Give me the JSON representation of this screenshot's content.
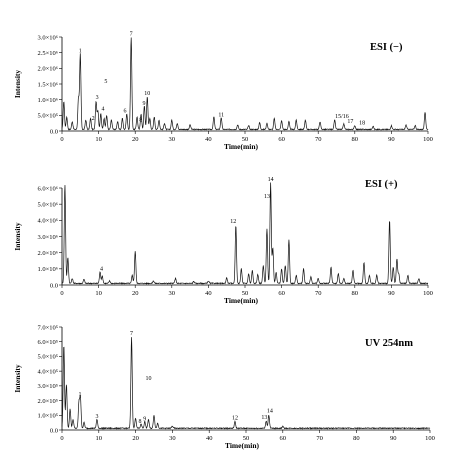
{
  "chart_data": [
    {
      "type": "line",
      "label": "ESI (−)",
      "xlabel": "Time(min)",
      "ylabel": "Intensity",
      "xlim": [
        0,
        100
      ],
      "ylim": [
        0,
        3.0
      ],
      "xticks": [
        0,
        10,
        20,
        30,
        40,
        50,
        60,
        70,
        80,
        90,
        100
      ],
      "yticks": [
        {
          "v": 0.0,
          "t": "0.0"
        },
        {
          "v": 0.5,
          "t": "5.0×10⁵"
        },
        {
          "v": 1.0,
          "t": "1.0×10⁶"
        },
        {
          "v": 1.5,
          "t": "1.5×10⁶"
        },
        {
          "v": 2.0,
          "t": "2.0×10⁶"
        },
        {
          "v": 2.5,
          "t": "2.5×10⁶"
        },
        {
          "v": 3.0,
          "t": "3.0×10⁶"
        }
      ],
      "peaks": [
        [
          0.5,
          0.9
        ],
        [
          1.3,
          0.4
        ],
        [
          2.8,
          0.25
        ],
        [
          4.5,
          1.0
        ],
        [
          5.0,
          2.4
        ],
        [
          6.5,
          0.3
        ],
        [
          7.8,
          0.35
        ],
        [
          9.3,
          0.9
        ],
        [
          9.8,
          0.6
        ],
        [
          10.6,
          0.5
        ],
        [
          11.5,
          0.35
        ],
        [
          12.2,
          0.45
        ],
        [
          13.5,
          0.3
        ],
        [
          15.2,
          0.25
        ],
        [
          16.5,
          0.35
        ],
        [
          17.7,
          0.5
        ],
        [
          18.9,
          2.95
        ],
        [
          20.5,
          0.4
        ],
        [
          21.6,
          0.5
        ],
        [
          22.5,
          0.75
        ],
        [
          23.3,
          1.05
        ],
        [
          24.0,
          0.35
        ],
        [
          25.2,
          0.4
        ],
        [
          26.5,
          0.3
        ],
        [
          28.0,
          0.2
        ],
        [
          30.0,
          0.3
        ],
        [
          31.5,
          0.2
        ],
        [
          35.0,
          0.15
        ],
        [
          41.5,
          0.4
        ],
        [
          43.5,
          0.38
        ],
        [
          48.0,
          0.15
        ],
        [
          51.0,
          0.12
        ],
        [
          54.0,
          0.22
        ],
        [
          56.0,
          0.2
        ],
        [
          58.0,
          0.35
        ],
        [
          60.0,
          0.28
        ],
        [
          62.0,
          0.25
        ],
        [
          64.0,
          0.3
        ],
        [
          66.5,
          0.3
        ],
        [
          70.5,
          0.25
        ],
        [
          74.5,
          0.32
        ],
        [
          77.0,
          0.18
        ],
        [
          80.0,
          0.12
        ],
        [
          85.0,
          0.1
        ],
        [
          90.0,
          0.12
        ],
        [
          94.0,
          0.14
        ],
        [
          96.5,
          0.13
        ],
        [
          99.2,
          0.55
        ]
      ],
      "annotations": [
        {
          "x": 5.0,
          "y": 2.45,
          "text": "1"
        },
        {
          "x": 8.5,
          "y": 0.3,
          "text": "2"
        },
        {
          "x": 9.6,
          "y": 0.98,
          "text": "3"
        },
        {
          "x": 11.2,
          "y": 0.6,
          "text": "4"
        },
        {
          "x": 12.0,
          "y": 1.48,
          "text": "5"
        },
        {
          "x": 17.2,
          "y": 0.55,
          "text": "6"
        },
        {
          "x": 18.9,
          "y": 3.0,
          "text": "7"
        },
        {
          "x": 21.5,
          "y": 0.25,
          "text": "8"
        },
        {
          "x": 22.4,
          "y": 0.78,
          "text": "9"
        },
        {
          "x": 23.3,
          "y": 1.1,
          "text": "10"
        },
        {
          "x": 43.5,
          "y": 0.42,
          "text": "11"
        },
        {
          "x": 76.5,
          "y": 0.36,
          "text": "15/16"
        },
        {
          "x": 78.8,
          "y": 0.2,
          "text": "17"
        },
        {
          "x": 82.0,
          "y": 0.16,
          "text": "18"
        }
      ]
    },
    {
      "type": "line",
      "label": "ESI (+)",
      "xlabel": "Time(min)",
      "ylabel": "Intensity",
      "xlim": [
        0,
        100
      ],
      "ylim": [
        0,
        6.0
      ],
      "xticks": [
        0,
        10,
        20,
        30,
        40,
        50,
        60,
        70,
        80,
        90,
        100
      ],
      "yticks": [
        {
          "v": 0.0,
          "t": "0.0"
        },
        {
          "v": 1.0,
          "t": "1.0×10⁶"
        },
        {
          "v": 2.0,
          "t": "2.0×10⁶"
        },
        {
          "v": 3.0,
          "t": "3.0×10⁶"
        },
        {
          "v": 4.0,
          "t": "4.0×10⁶"
        },
        {
          "v": 5.0,
          "t": "5.0×10⁶"
        },
        {
          "v": 6.0,
          "t": "6.0×10⁶"
        }
      ],
      "peaks": [
        [
          0.8,
          6.1
        ],
        [
          1.6,
          1.6
        ],
        [
          2.8,
          0.3
        ],
        [
          6.0,
          0.25
        ],
        [
          10.4,
          0.7
        ],
        [
          11.0,
          0.45
        ],
        [
          13.0,
          0.15
        ],
        [
          19.2,
          0.5
        ],
        [
          20.0,
          2.0
        ],
        [
          25.0,
          0.15
        ],
        [
          31.0,
          0.3
        ],
        [
          36.0,
          0.12
        ],
        [
          40.0,
          0.15
        ],
        [
          45.0,
          0.35
        ],
        [
          47.5,
          3.6
        ],
        [
          49.0,
          0.9
        ],
        [
          51.0,
          0.6
        ],
        [
          52.0,
          0.8
        ],
        [
          53.5,
          0.55
        ],
        [
          55.0,
          1.1
        ],
        [
          56.0,
          3.4
        ],
        [
          57.0,
          6.2
        ],
        [
          57.6,
          2.2
        ],
        [
          58.5,
          0.7
        ],
        [
          60.0,
          0.9
        ],
        [
          61.0,
          1.1
        ],
        [
          62.0,
          2.7
        ],
        [
          64.0,
          0.5
        ],
        [
          66.0,
          0.9
        ],
        [
          68.0,
          0.4
        ],
        [
          70.0,
          0.3
        ],
        [
          73.5,
          1.0
        ],
        [
          75.5,
          0.6
        ],
        [
          77.0,
          0.3
        ],
        [
          79.5,
          0.8
        ],
        [
          82.5,
          1.3
        ],
        [
          84.0,
          0.5
        ],
        [
          86.0,
          0.5
        ],
        [
          89.5,
          3.9
        ],
        [
          90.5,
          1.0
        ],
        [
          91.5,
          1.5
        ],
        [
          92.0,
          0.6
        ],
        [
          94.5,
          0.5
        ],
        [
          97.5,
          0.3
        ]
      ],
      "annotations": [
        {
          "x": 10.8,
          "y": 0.8,
          "text": "4"
        },
        {
          "x": 46.8,
          "y": 3.75,
          "text": "12"
        },
        {
          "x": 56.0,
          "y": 5.3,
          "text": "13"
        },
        {
          "x": 57.0,
          "y": 6.35,
          "text": "14"
        }
      ]
    },
    {
      "type": "line",
      "label": "UV 254nm",
      "xlabel": "Time(min)",
      "ylabel": "Intensity",
      "xlim": [
        0,
        100
      ],
      "ylim": [
        0,
        7.0
      ],
      "xticks": [
        0,
        10,
        20,
        30,
        40,
        50,
        60,
        70,
        80,
        90,
        100
      ],
      "yticks": [
        {
          "v": 0.0,
          "t": "0.0"
        },
        {
          "v": 1.0,
          "t": "1.0×10⁵"
        },
        {
          "v": 2.0,
          "t": "2.0×10⁵"
        },
        {
          "v": 3.0,
          "t": "3.0×10⁵"
        },
        {
          "v": 4.0,
          "t": "4.0×10⁵"
        },
        {
          "v": 5.0,
          "t": "5.0×10⁵"
        },
        {
          "v": 6.0,
          "t": "6.0×10⁵"
        },
        {
          "v": 7.0,
          "t": "7.0×10⁵"
        }
      ],
      "peaks": [
        [
          0.5,
          5.7
        ],
        [
          1.2,
          3.0
        ],
        [
          2.2,
          1.3
        ],
        [
          3.0,
          0.6
        ],
        [
          4.6,
          1.7
        ],
        [
          5.0,
          2.1
        ],
        [
          6.0,
          0.4
        ],
        [
          9.5,
          0.6
        ],
        [
          18.9,
          6.2
        ],
        [
          20.0,
          0.7
        ],
        [
          21.5,
          0.3
        ],
        [
          22.5,
          0.45
        ],
        [
          23.5,
          0.6
        ],
        [
          25.0,
          0.9
        ],
        [
          26.0,
          0.35
        ],
        [
          30.0,
          0.15
        ],
        [
          47.0,
          0.45
        ],
        [
          55.5,
          0.5
        ],
        [
          56.2,
          0.9
        ],
        [
          60.0,
          0.12
        ]
      ],
      "annotations": [
        {
          "x": 4.9,
          "y": 2.2,
          "text": "1"
        },
        {
          "x": 9.5,
          "y": 0.7,
          "text": "3"
        },
        {
          "x": 18.9,
          "y": 6.35,
          "text": "7"
        },
        {
          "x": 21.2,
          "y": 0.38,
          "text": "8"
        },
        {
          "x": 22.5,
          "y": 0.55,
          "text": "9"
        },
        {
          "x": 23.5,
          "y": 3.3,
          "text": "10"
        },
        {
          "x": 47.0,
          "y": 0.6,
          "text": "12"
        },
        {
          "x": 55.0,
          "y": 0.65,
          "text": "13"
        },
        {
          "x": 56.5,
          "y": 1.1,
          "text": "14"
        }
      ]
    }
  ]
}
